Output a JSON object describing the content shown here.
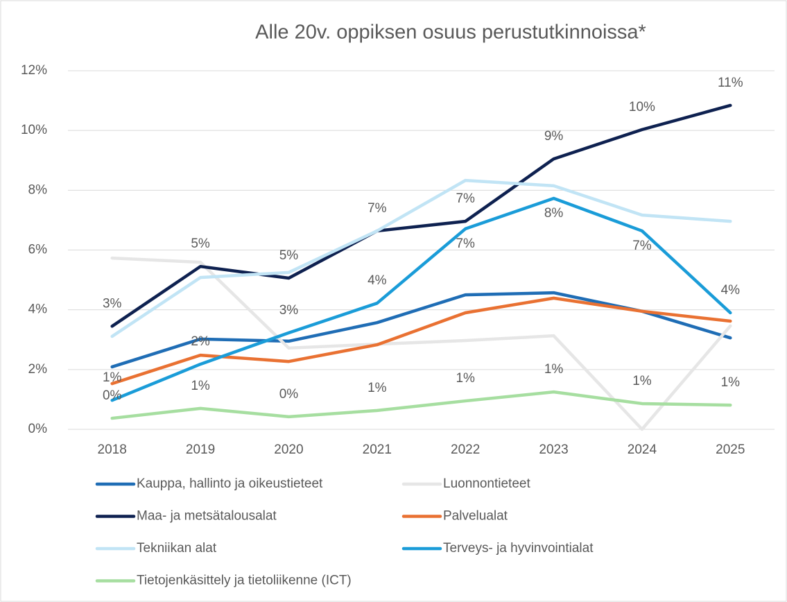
{
  "chart_data": {
    "type": "line",
    "title": "Alle 20v. oppiksen osuus perustutkinnoissa*",
    "categories": [
      "2018",
      "2019",
      "2020",
      "2021",
      "2022",
      "2023",
      "2024",
      "2025"
    ],
    "ylim": [
      0,
      12
    ],
    "yticks": [
      {
        "value": 0,
        "label": "0%"
      },
      {
        "value": 2,
        "label": "2%"
      },
      {
        "value": 4,
        "label": "4%"
      },
      {
        "value": 6,
        "label": "6%"
      },
      {
        "value": 8,
        "label": "8%"
      },
      {
        "value": 10,
        "label": "10%"
      },
      {
        "value": 12,
        "label": "12%"
      }
    ],
    "grid": true,
    "legend": "bottom",
    "series": [
      {
        "name": "Kauppa, hallinto ja oikeustieteet",
        "color": "#1f6db5",
        "values": [
          2.09,
          3.02,
          2.95,
          3.57,
          4.5,
          4.57,
          3.95,
          3.06
        ]
      },
      {
        "name": "Luonnontieteet",
        "color": "#e6e6e6",
        "values": [
          5.73,
          5.59,
          2.72,
          2.85,
          2.97,
          3.13,
          0,
          3.46
        ]
      },
      {
        "name": "Maa- ja metsätalousalat",
        "color": "#0e2150",
        "values": [
          3.45,
          5.45,
          5.06,
          6.64,
          6.96,
          9.05,
          10.03,
          10.84
        ],
        "value_labels": [
          "3%",
          "5%",
          "5%",
          "7%",
          "7%",
          "9%",
          "10%",
          "11%"
        ]
      },
      {
        "name": "Palvelualat",
        "color": "#e97132",
        "values": [
          1.53,
          2.48,
          2.27,
          2.83,
          3.9,
          4.39,
          3.95,
          3.62
        ]
      },
      {
        "name": "Tekniikan alat",
        "color": "#c1e4f5",
        "values": [
          3.11,
          5.08,
          5.25,
          6.64,
          8.33,
          8.15,
          7.17,
          6.96
        ]
      },
      {
        "name": "Terveys- ja hyvinvointialat",
        "color": "#1a9cd8",
        "values": [
          0.97,
          2.18,
          3.23,
          4.22,
          6.71,
          7.73,
          6.64,
          3.9
        ],
        "value_labels": [
          "1%",
          "2%",
          "3%",
          "4%",
          "7%",
          "8%",
          "7%",
          "4%"
        ]
      },
      {
        "name": "Tietojenkäsittely ja tietoliikenne (ICT)",
        "color": "#a6dea0",
        "values": [
          0.37,
          0.7,
          0.42,
          0.63,
          0.95,
          1.25,
          0.86,
          0.81
        ],
        "value_labels": [
          "0%",
          "1%",
          "0%",
          "1%",
          "1%",
          "1%",
          "1%",
          "1%"
        ]
      }
    ]
  }
}
